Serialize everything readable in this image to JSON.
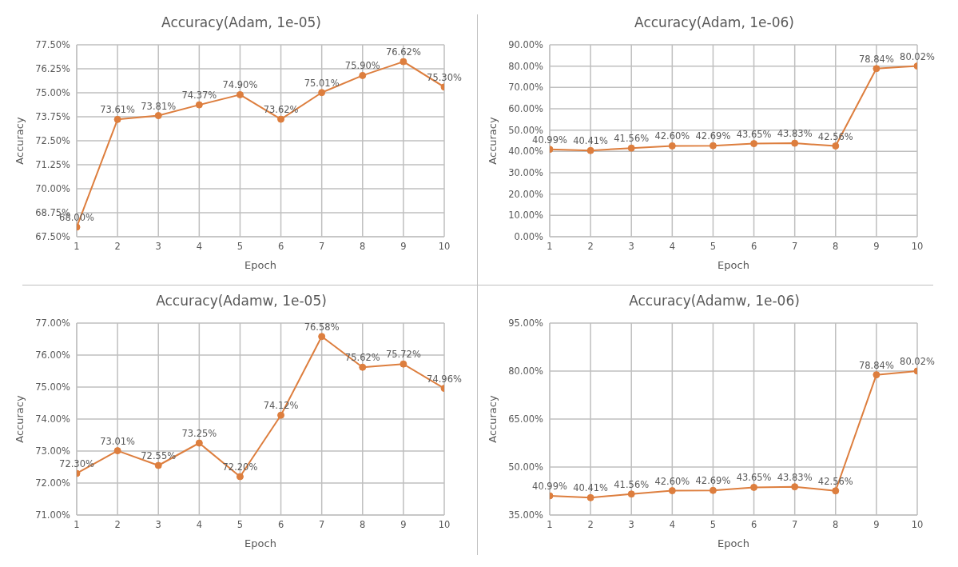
{
  "chart_data": [
    {
      "type": "line",
      "title": "Accuracy(Adam, 1e-05)",
      "xlabel": "Epoch",
      "ylabel": "Accuracy",
      "x": [
        1,
        2,
        3,
        4,
        5,
        6,
        7,
        8,
        9,
        10
      ],
      "xlim": [
        1,
        10
      ],
      "xticks": [
        1,
        2,
        3,
        4,
        5,
        6,
        7,
        8,
        9,
        10
      ],
      "ylim": [
        67.5,
        77.5
      ],
      "yticks": [
        {
          "value": 67.5,
          "label": "67.50%"
        },
        {
          "value": 68.75,
          "label": "68.75%"
        },
        {
          "value": 70,
          "label": "70.00%"
        },
        {
          "value": 71.25,
          "label": "71.25%"
        },
        {
          "value": 72.5,
          "label": "72.50%"
        },
        {
          "value": 73.75,
          "label": "73.75%"
        },
        {
          "value": 75,
          "label": "75.00%"
        },
        {
          "value": 76.25,
          "label": "76.25%"
        },
        {
          "value": 77.5,
          "label": "77.50%"
        }
      ],
      "grid": true,
      "marker": "circle",
      "series": [
        {
          "color": "#dd7e3e",
          "values": [
            68.0,
            73.61,
            73.81,
            74.37,
            74.9,
            73.62,
            75.01,
            75.9,
            76.62,
            75.3
          ],
          "value_labels": [
            "68.00%",
            "73.61%",
            "73.81%",
            "74.37%",
            "74.90%",
            "73.62%",
            "75.01%",
            "75.90%",
            "76.62%",
            "75.30%"
          ]
        }
      ]
    },
    {
      "type": "line",
      "title": "Accuracy(Adam, 1e-06)",
      "xlabel": "Epoch",
      "ylabel": "Accuracy",
      "x": [
        1,
        2,
        3,
        4,
        5,
        6,
        7,
        8,
        9,
        10
      ],
      "xlim": [
        1,
        10
      ],
      "xticks": [
        1,
        2,
        3,
        4,
        5,
        6,
        7,
        8,
        9,
        10
      ],
      "ylim": [
        0,
        90
      ],
      "yticks": [
        {
          "value": 0,
          "label": "0.00%"
        },
        {
          "value": 10,
          "label": "10.00%"
        },
        {
          "value": 20,
          "label": "20.00%"
        },
        {
          "value": 30,
          "label": "30.00%"
        },
        {
          "value": 40,
          "label": "40.00%"
        },
        {
          "value": 50,
          "label": "50.00%"
        },
        {
          "value": 60,
          "label": "60.00%"
        },
        {
          "value": 70,
          "label": "70.00%"
        },
        {
          "value": 80,
          "label": "80.00%"
        },
        {
          "value": 90,
          "label": "90.00%"
        }
      ],
      "grid": true,
      "marker": "circle",
      "series": [
        {
          "color": "#dd7e3e",
          "values": [
            40.99,
            40.41,
            41.56,
            42.6,
            42.69,
            43.65,
            43.83,
            42.56,
            78.84,
            80.02
          ],
          "value_labels": [
            "40.99%",
            "40.41%",
            "41.56%",
            "42.60%",
            "42.69%",
            "43.65%",
            "43.83%",
            "42.56%",
            "78.84%",
            "80.02%"
          ]
        }
      ]
    },
    {
      "type": "line",
      "title": "Accuracy(Adamw, 1e-05)",
      "xlabel": "Epoch",
      "ylabel": "Accuracy",
      "x": [
        1,
        2,
        3,
        4,
        5,
        6,
        7,
        8,
        9,
        10
      ],
      "xlim": [
        1,
        10
      ],
      "xticks": [
        1,
        2,
        3,
        4,
        5,
        6,
        7,
        8,
        9,
        10
      ],
      "ylim": [
        71,
        77
      ],
      "yticks": [
        {
          "value": 71,
          "label": "71.00%"
        },
        {
          "value": 72,
          "label": "72.00%"
        },
        {
          "value": 73,
          "label": "73.00%"
        },
        {
          "value": 74,
          "label": "74.00%"
        },
        {
          "value": 75,
          "label": "75.00%"
        },
        {
          "value": 76,
          "label": "76.00%"
        },
        {
          "value": 77,
          "label": "77.00%"
        }
      ],
      "grid": true,
      "marker": "circle",
      "series": [
        {
          "color": "#dd7e3e",
          "values": [
            72.3,
            73.01,
            72.55,
            73.25,
            72.2,
            74.12,
            76.58,
            75.62,
            75.72,
            74.96
          ],
          "value_labels": [
            "72.30%",
            "73.01%",
            "72.55%",
            "73.25%",
            "72.20%",
            "74.12%",
            "76.58%",
            "75.62%",
            "75.72%",
            "74.96%"
          ]
        }
      ]
    },
    {
      "type": "line",
      "title": "Accuracy(Adamw, 1e-06)",
      "xlabel": "Epoch",
      "ylabel": "Accuracy",
      "x": [
        1,
        2,
        3,
        4,
        5,
        6,
        7,
        8,
        9,
        10
      ],
      "xlim": [
        1,
        10
      ],
      "xticks": [
        1,
        2,
        3,
        4,
        5,
        6,
        7,
        8,
        9,
        10
      ],
      "ylim": [
        35,
        95
      ],
      "yticks": [
        {
          "value": 35,
          "label": "35.00%"
        },
        {
          "value": 50,
          "label": "50.00%"
        },
        {
          "value": 65,
          "label": "65.00%"
        },
        {
          "value": 80,
          "label": "80.00%"
        },
        {
          "value": 95,
          "label": "95.00%"
        }
      ],
      "grid": true,
      "marker": "circle",
      "series": [
        {
          "color": "#dd7e3e",
          "values": [
            40.99,
            40.41,
            41.56,
            42.6,
            42.69,
            43.65,
            43.83,
            42.56,
            78.84,
            80.02
          ],
          "value_labels": [
            "40.99%",
            "40.41%",
            "41.56%",
            "42.60%",
            "42.69%",
            "43.65%",
            "43.83%",
            "42.56%",
            "78.84%",
            "80.02%"
          ]
        }
      ]
    }
  ]
}
